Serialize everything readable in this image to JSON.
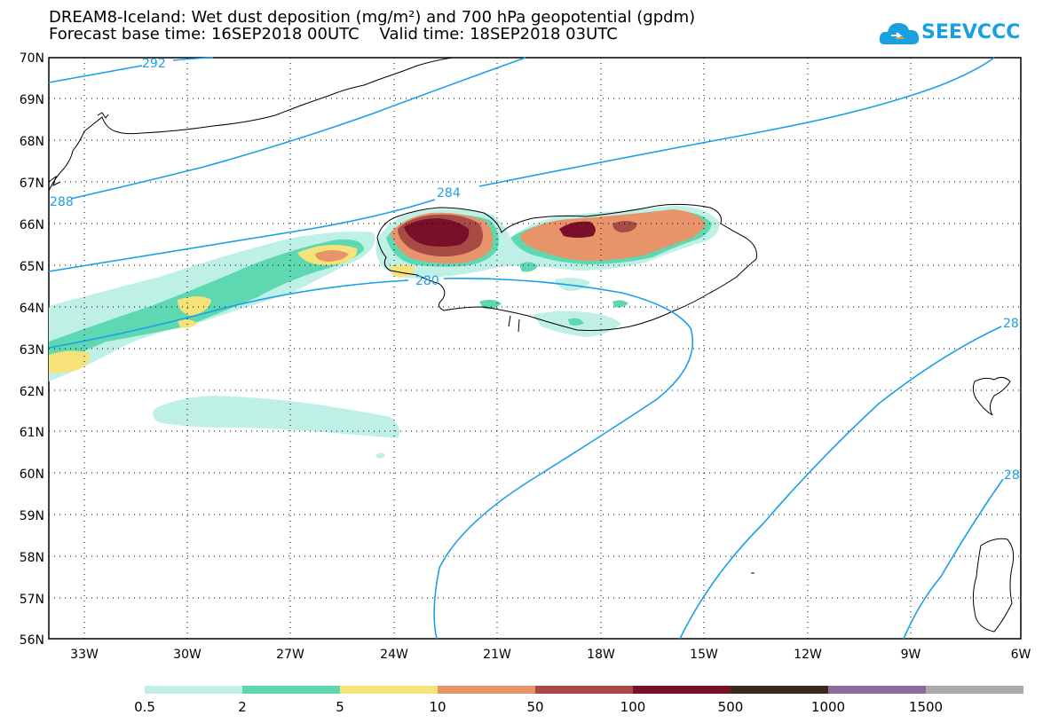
{
  "title_line1": "DREAM8-Iceland: Wet dust deposition (mg/m²) and 700 hPa geopotential (gpdm)",
  "title_line2": "Forecast base time: 16SEP2018 00UTC    Valid time: 18SEP2018 03UTC",
  "logo_text": "SEEVCCC",
  "lat_labels": [
    "70N",
    "69N",
    "68N",
    "67N",
    "66N",
    "65N",
    "64N",
    "63N",
    "62N",
    "61N",
    "60N",
    "59N",
    "58N",
    "57N",
    "56N"
  ],
  "lon_labels": [
    "33W",
    "30W",
    "27W",
    "24W",
    "21W",
    "18W",
    "15W",
    "12W",
    "9W",
    "6W"
  ],
  "contour_labels": [
    "292",
    "288",
    "284",
    "280",
    "28",
    "28"
  ],
  "legend": {
    "labels": [
      "0.5",
      "2",
      "5",
      "10",
      "50",
      "100",
      "500",
      "1000",
      "1500"
    ],
    "colors": [
      "#bff0e6",
      "#5dd8b0",
      "#f7e27a",
      "#e8946a",
      "#a84b44",
      "#7a0f2a",
      "#3a2a1e",
      "#8e6a9e",
      "#aaaaaa"
    ]
  },
  "colors": {
    "contour": "#1aa0e8",
    "coast": "#000000",
    "grid": "#000000"
  }
}
